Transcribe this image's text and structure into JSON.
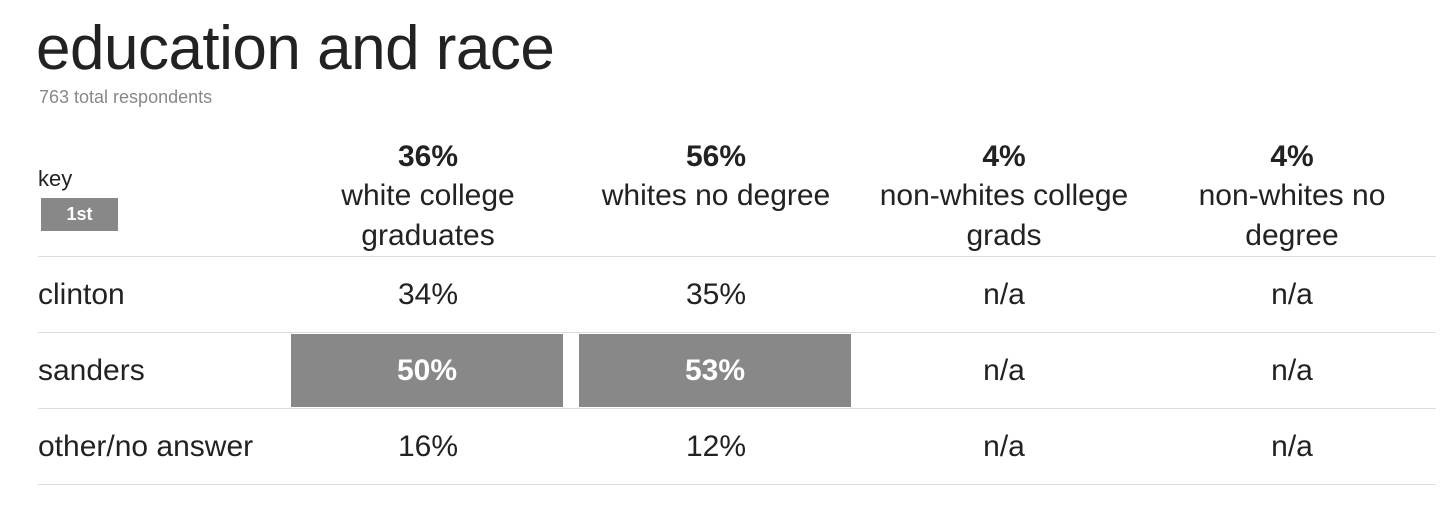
{
  "header": {
    "title": "education and race",
    "subtitle": "763 total respondents"
  },
  "table": {
    "key_label": "key",
    "key_badge": "1st",
    "columns": [
      {
        "share": "36%",
        "label": "white college graduates"
      },
      {
        "share": "56%",
        "label": "whites no degree"
      },
      {
        "share": "4%",
        "label": "non-whites college grads"
      },
      {
        "share": "4%",
        "label": "non-whites no degree"
      }
    ],
    "rows": [
      {
        "label": "clinton",
        "cells": [
          "34%",
          "35%",
          "n/a",
          "n/a"
        ],
        "first": [
          false,
          false,
          false,
          false
        ]
      },
      {
        "label": "sanders",
        "cells": [
          "50%",
          "53%",
          "n/a",
          "n/a"
        ],
        "first": [
          true,
          true,
          false,
          false
        ]
      },
      {
        "label": "other/no answer",
        "cells": [
          "16%",
          "12%",
          "n/a",
          "n/a"
        ],
        "first": [
          false,
          false,
          false,
          false
        ]
      }
    ]
  }
}
